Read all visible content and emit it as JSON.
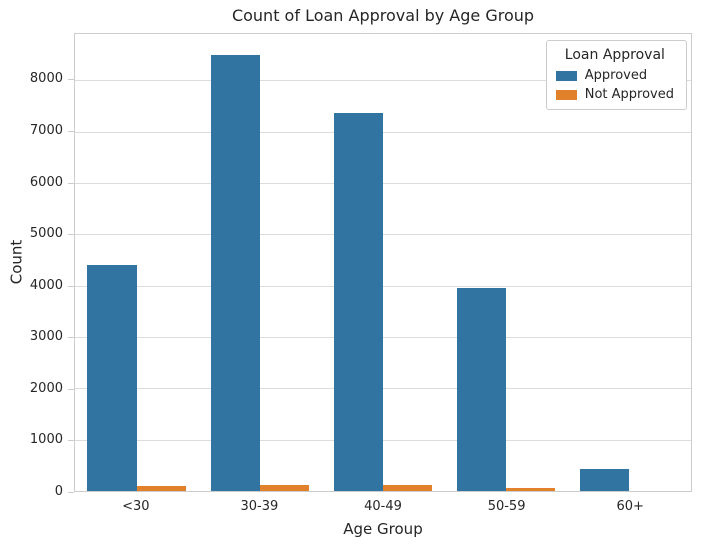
{
  "chart_data": {
    "type": "bar",
    "title": "Count of Loan Approval by Age Group",
    "xlabel": "Age Group",
    "ylabel": "Count",
    "categories": [
      "<30",
      "30-39",
      "40-49",
      "50-59",
      "60+"
    ],
    "series": [
      {
        "name": "Approved",
        "color": "#3274a1",
        "values": [
          4400,
          8500,
          7370,
          3950,
          420
        ]
      },
      {
        "name": "Not Approved",
        "color": "#e1812c",
        "values": [
          100,
          120,
          120,
          60,
          0
        ]
      }
    ],
    "ylim": [
      0,
      8900
    ],
    "yticks": [
      0,
      1000,
      2000,
      3000,
      4000,
      5000,
      6000,
      7000,
      8000
    ],
    "legend": {
      "title": "Loan Approval",
      "position": "upper right"
    },
    "grid": "horizontal",
    "colors": {
      "background": "#ffffff",
      "spine": "#cccccc",
      "gridline": "#dcdcdc",
      "text": "#262626"
    }
  }
}
